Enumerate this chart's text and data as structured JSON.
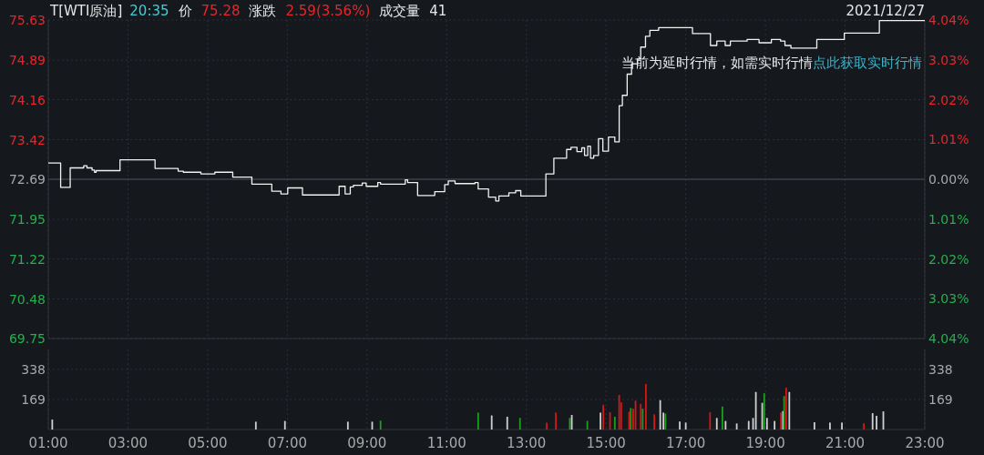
{
  "chart_data": [
    {
      "type": "step",
      "title": "T[WTI原油]",
      "annotations": [
        "20:35",
        "价",
        "75.28",
        "涨跌",
        "2.59(3.56%)",
        "成交量",
        "41",
        "2021/12/27",
        "当前为延时行情，如需实时行情",
        "点此获取实时行情"
      ],
      "x": [
        1.0,
        1.31,
        1.55,
        1.89,
        1.97,
        2.1,
        2.16,
        2.2,
        2.8,
        3.68,
        4.26,
        4.39,
        4.83,
        5.18,
        5.63,
        6.11,
        6.61,
        6.84,
        7.01,
        7.38,
        8.3,
        8.45,
        8.58,
        8.66,
        8.88,
        8.98,
        9.27,
        9.34,
        9.96,
        10.02,
        10.27,
        10.7,
        10.95,
        11.04,
        11.21,
        11.71,
        11.79,
        12.05,
        12.23,
        12.31,
        12.56,
        12.73,
        12.86,
        13.49,
        13.69,
        14.01,
        14.12,
        14.27,
        14.39,
        14.46,
        14.54,
        14.61,
        14.69,
        14.81,
        14.92,
        15.06,
        15.22,
        15.33,
        15.41,
        15.53,
        15.64,
        15.79,
        15.87,
        15.99,
        16.1,
        16.32,
        17.17,
        17.62,
        17.78,
        17.99,
        18.12,
        18.54,
        18.84,
        19.15,
        19.38,
        19.49,
        19.64,
        20.29,
        20.98,
        21.86,
        23.0
      ],
      "series": [
        {
          "color": "#f2f2f2",
          "values": [
            72.99,
            72.54,
            72.9,
            72.94,
            72.9,
            72.86,
            72.82,
            72.85,
            73.05,
            72.89,
            72.84,
            72.82,
            72.79,
            72.82,
            72.73,
            72.6,
            72.47,
            72.42,
            72.53,
            72.4,
            72.56,
            72.42,
            72.55,
            72.58,
            72.62,
            72.56,
            72.63,
            72.6,
            72.68,
            72.63,
            72.39,
            72.46,
            72.59,
            72.66,
            72.61,
            72.63,
            72.51,
            72.36,
            72.29,
            72.38,
            72.44,
            72.48,
            72.38,
            72.79,
            73.08,
            73.24,
            73.28,
            73.2,
            73.27,
            73.13,
            73.3,
            73.08,
            73.13,
            73.44,
            73.21,
            73.47,
            73.38,
            74.05,
            74.24,
            74.63,
            74.82,
            74.91,
            75.13,
            75.33,
            75.44,
            75.49,
            75.38,
            75.16,
            75.24,
            75.16,
            75.24,
            75.27,
            75.21,
            75.27,
            75.24,
            75.16,
            75.11,
            75.27,
            75.39,
            75.62,
            75.62
          ]
        }
      ],
      "xlim": [
        1,
        23
      ],
      "ylim": [
        69.75,
        75.63
      ],
      "yticks": [
        69.75,
        70.48,
        71.22,
        71.95,
        72.69,
        73.42,
        74.16,
        74.89,
        75.63
      ],
      "y2lim": [
        -4.04,
        4.04
      ],
      "y2ticks": [
        {
          "value": -4.04,
          "label": "4.04%"
        },
        {
          "value": -3.03,
          "label": "3.03%"
        },
        {
          "value": -2.02,
          "label": "2.02%"
        },
        {
          "value": -1.01,
          "label": "1.01%"
        },
        {
          "value": 0,
          "label": "0.00%"
        },
        {
          "value": 1.01,
          "label": "1.01%"
        },
        {
          "value": 2.02,
          "label": "2.02%"
        },
        {
          "value": 3.03,
          "label": "3.03%"
        },
        {
          "value": 4.04,
          "label": "4.04%"
        }
      ],
      "tick_labels": "y",
      "grid": true
    },
    {
      "type": "bar",
      "x": [
        1.1,
        6.21,
        6.94,
        8.52,
        9.13,
        9.34,
        11.79,
        12.13,
        12.52,
        12.84,
        13.51,
        13.74,
        14.09,
        14.14,
        14.53,
        14.86,
        14.93,
        15.1,
        15.22,
        15.33,
        15.38,
        15.58,
        15.62,
        15.68,
        15.74,
        15.87,
        15.92,
        16.0,
        16.21,
        16.36,
        16.44,
        16.49,
        16.85,
        17.0,
        17.61,
        17.78,
        17.92,
        18.0,
        18.28,
        18.58,
        18.69,
        18.76,
        18.92,
        18.97,
        19.04,
        19.23,
        19.39,
        19.44,
        19.47,
        19.52,
        19.6,
        20.23,
        20.62,
        20.92,
        21.47,
        21.69,
        21.79,
        21.96
      ],
      "values": [
        56,
        44,
        48,
        44,
        44,
        50,
        95,
        79,
        72,
        65,
        38,
        95,
        65,
        82,
        48,
        95,
        139,
        97,
        72,
        194,
        153,
        100,
        121,
        117,
        162,
        144,
        117,
        256,
        85,
        165,
        95,
        90,
        45,
        39,
        97,
        65,
        129,
        48,
        34,
        48,
        65,
        211,
        150,
        204,
        65,
        48,
        95,
        104,
        188,
        236,
        211,
        41,
        39,
        39,
        35,
        92,
        77,
        102
      ],
      "colors": [
        "#d0d0d0",
        "#d0d0d0",
        "#d0d0d0",
        "#d0d0d0",
        "#d0d0d0",
        "#1e9e1e",
        "#1e9e1e",
        "#d0d0d0",
        "#d0d0d0",
        "#1e9e1e",
        "#d41818",
        "#d41818",
        "#1e9e1e",
        "#d0d0d0",
        "#1e9e1e",
        "#d0d0d0",
        "#d41818",
        "#d41818",
        "#1e9e1e",
        "#d41818",
        "#d41818",
        "#d41818",
        "#1e9e1e",
        "#d41818",
        "#d41818",
        "#d41818",
        "#1e9e1e",
        "#d41818",
        "#d41818",
        "#d0d0d0",
        "#d0d0d0",
        "#1e9e1e",
        "#d0d0d0",
        "#d0d0d0",
        "#d41818",
        "#d0d0d0",
        "#1e9e1e",
        "#d0d0d0",
        "#d0d0d0",
        "#d0d0d0",
        "#d0d0d0",
        "#d0d0d0",
        "#d0d0d0",
        "#1e9e1e",
        "#d0d0d0",
        "#d0d0d0",
        "#d41818",
        "#d0d0d0",
        "#1e9e1e",
        "#d41818",
        "#d0d0d0",
        "#d0d0d0",
        "#d0d0d0",
        "#d0d0d0",
        "#d41818",
        "#d0d0d0",
        "#d0d0d0",
        "#d0d0d0"
      ],
      "xlim": [
        1,
        23
      ],
      "xticks": [
        {
          "value": 1,
          "label": "01:00"
        },
        {
          "value": 3,
          "label": "03:00"
        },
        {
          "value": 5,
          "label": "05:00"
        },
        {
          "value": 7,
          "label": "07:00"
        },
        {
          "value": 9,
          "label": "09:00"
        },
        {
          "value": 11,
          "label": "11:00"
        },
        {
          "value": 13,
          "label": "13:00"
        },
        {
          "value": 15,
          "label": "15:00"
        },
        {
          "value": 17,
          "label": "17:00"
        },
        {
          "value": 19,
          "label": "19:00"
        },
        {
          "value": 21,
          "label": "21:00"
        },
        {
          "value": 23,
          "label": "23:00"
        }
      ],
      "ylim": [
        0,
        450
      ],
      "yticks": [
        169,
        338
      ],
      "y2lim": [
        0,
        450
      ],
      "y2ticks": [
        169,
        338
      ],
      "grid": true
    }
  ]
}
